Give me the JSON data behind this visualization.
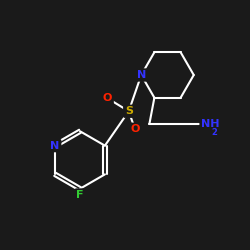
{
  "background_color": "#1a1a1a",
  "bond_color": "#ffffff",
  "atom_colors": {
    "N": "#3333ff",
    "O": "#ff2200",
    "S": "#ccaa00",
    "F": "#33cc33",
    "NH2": "#3333ff"
  },
  "bond_width": 1.5,
  "font_size_atoms": 8,
  "font_size_subscript": 6
}
